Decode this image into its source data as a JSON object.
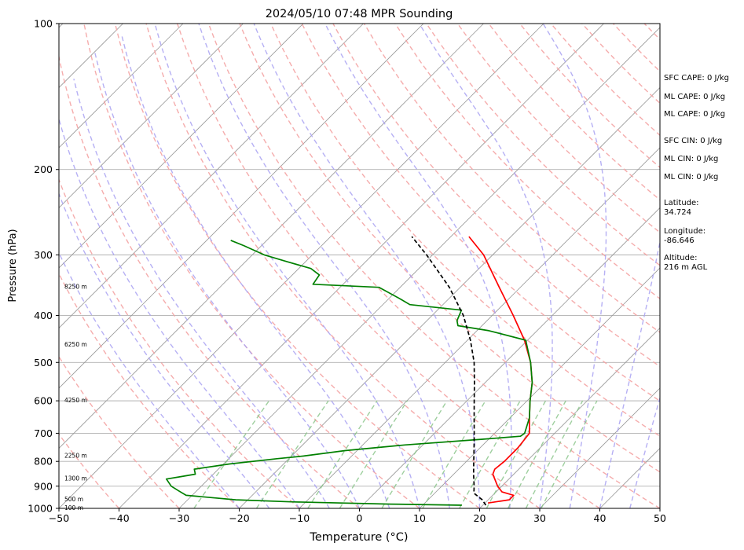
{
  "chart_data": {
    "type": "line",
    "title": "2024/05/10 07:48 MPR Sounding",
    "xlabel": "Temperature (°C)",
    "ylabel": "Pressure (hPa)",
    "xlim": [
      -50,
      50
    ],
    "ylim": [
      1000,
      100
    ],
    "y_scale": "log",
    "skew": true,
    "grid": true,
    "x_ticks": [
      "−50",
      "−40",
      "−30",
      "−20",
      "−10",
      "0",
      "10",
      "20",
      "30",
      "40",
      "50"
    ],
    "x_tick_values": [
      -50,
      -40,
      -30,
      -20,
      -10,
      0,
      10,
      20,
      30,
      40,
      50
    ],
    "y_ticks": [
      "1000",
      "900",
      "800",
      "700",
      "600",
      "500",
      "400",
      "300",
      "200",
      "100"
    ],
    "y_tick_values": [
      1000,
      900,
      800,
      700,
      600,
      500,
      400,
      300,
      200,
      100
    ],
    "height_labels": [
      {
        "p": 1000,
        "text": "100 m"
      },
      {
        "p": 960,
        "text": "500 m"
      },
      {
        "p": 870,
        "text": "1300 m"
      },
      {
        "p": 780,
        "text": "2250 m"
      },
      {
        "p": 600,
        "text": "4250 m"
      },
      {
        "p": 460,
        "text": "6250 m"
      },
      {
        "p": 350,
        "text": "8250 m"
      }
    ],
    "series": [
      {
        "key": "temperature",
        "color": "#ff0000",
        "style": "solid",
        "points": [
          [
            975,
            20.5
          ],
          [
            960,
            23.5
          ],
          [
            940,
            23.5
          ],
          [
            925,
            21.0
          ],
          [
            900,
            19.3
          ],
          [
            850,
            16.5
          ],
          [
            830,
            16.0
          ],
          [
            800,
            16.3
          ],
          [
            750,
            16.3
          ],
          [
            700,
            15.8
          ],
          [
            650,
            13.2
          ],
          [
            600,
            10.5
          ],
          [
            550,
            7.8
          ],
          [
            500,
            4.2
          ],
          [
            450,
            -0.5
          ],
          [
            400,
            -6.5
          ],
          [
            350,
            -13.5
          ],
          [
            300,
            -21.5
          ],
          [
            275,
            -27.0
          ]
        ]
      },
      {
        "key": "dewpoint",
        "color": "#008000",
        "style": "solid",
        "points": [
          [
            985,
            16.5
          ],
          [
            980,
            4.5
          ],
          [
            970,
            -12.0
          ],
          [
            960,
            -22.0
          ],
          [
            940,
            -31.0
          ],
          [
            920,
            -33.0
          ],
          [
            900,
            -35.0
          ],
          [
            870,
            -37.0
          ],
          [
            860,
            -35.0
          ],
          [
            850,
            -33.0
          ],
          [
            830,
            -34.0
          ],
          [
            810,
            -29.0
          ],
          [
            790,
            -22.0
          ],
          [
            780,
            -18.0
          ],
          [
            760,
            -12.0
          ],
          [
            740,
            -3.0
          ],
          [
            720,
            9.0
          ],
          [
            710,
            14.8
          ],
          [
            700,
            15.0
          ],
          [
            650,
            13.2
          ],
          [
            600,
            10.5
          ],
          [
            550,
            7.8
          ],
          [
            500,
            4.2
          ],
          [
            450,
            -0.3
          ],
          [
            430,
            -8.0
          ],
          [
            420,
            -14.0
          ],
          [
            410,
            -15.0
          ],
          [
            400,
            -15.5
          ],
          [
            390,
            -16.0
          ],
          [
            380,
            -25.5
          ],
          [
            370,
            -28.0
          ],
          [
            350,
            -33.5
          ],
          [
            345,
            -45.0
          ],
          [
            330,
            -45.5
          ],
          [
            320,
            -48.0
          ],
          [
            310,
            -53.0
          ],
          [
            300,
            -58.0
          ],
          [
            287,
            -63.0
          ],
          [
            280,
            -66.0
          ]
        ]
      },
      {
        "key": "parcel",
        "color": "#000000",
        "style": "dashed",
        "points": [
          [
            985,
            20.5
          ],
          [
            960,
            19.0
          ],
          [
            930,
            16.5
          ],
          [
            900,
            15.4
          ],
          [
            850,
            13.3
          ],
          [
            800,
            11.2
          ],
          [
            750,
            9.0
          ],
          [
            700,
            6.6
          ],
          [
            650,
            4.0
          ],
          [
            600,
            1.2
          ],
          [
            550,
            -1.8
          ],
          [
            500,
            -5.2
          ],
          [
            450,
            -9.5
          ],
          [
            400,
            -14.8
          ],
          [
            350,
            -21.8
          ],
          [
            300,
            -31.0
          ],
          [
            275,
            -36.5
          ]
        ]
      }
    ]
  },
  "info": {
    "sfc_cape": "SFC CAPE: 0 J/kg",
    "ml_cape": "ML CAPE: 0 J/kg",
    "ml_cape_2": "ML CAPE: 0 J/kg",
    "sfc_cin": "SFC CIN: 0 J/kg",
    "ml_cin": "ML CIN: 0 J/kg",
    "ml_cin_2": "ML CIN: 0 J/kg",
    "latitude_label": "Latitude:",
    "latitude_value": "34.724",
    "longitude_label": "Longitude:",
    "longitude_value": "-86.646",
    "altitude_label": "Altitude:",
    "altitude_value": "216 m AGL"
  },
  "colors": {
    "temperature": "#ff0000",
    "dewpoint": "#008000",
    "parcel": "#000000",
    "dry_adiabats": "#f4a3a3",
    "moist_adiabats": "#a9a2f2",
    "mixing_ratio": "#86c386",
    "isotherms": "#999999",
    "grid": "#b0b0b0"
  }
}
